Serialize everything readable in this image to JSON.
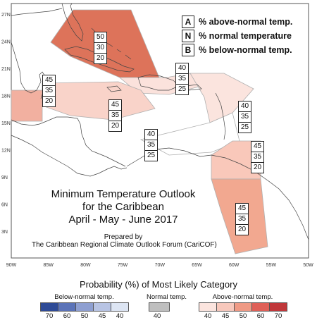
{
  "legend": {
    "items": [
      {
        "code": "A",
        "text": "% above-normal temp."
      },
      {
        "code": "N",
        "text": "% normal temperature"
      },
      {
        "code": "B",
        "text": "% below-normal temp."
      }
    ]
  },
  "title": {
    "line1": "Minimum Temperature Outlook",
    "line2": "for the Caribbean",
    "line3": "April - May - June 2017",
    "prepared1": "Prepared by",
    "prepared2": "The Caribbean Regional Climate Outlook Forum (CariCOF)"
  },
  "axes": {
    "lat_labels": [
      "27N",
      "24N",
      "21N",
      "18N",
      "15N",
      "12N",
      "9N",
      "6N",
      "3N"
    ],
    "lon_labels": [
      "90W",
      "85W",
      "80W",
      "75W",
      "70W",
      "65W",
      "60W",
      "55W",
      "50W"
    ]
  },
  "regions": [
    {
      "id": "bahamas-cuba",
      "values": [
        50,
        30,
        20
      ],
      "color": "#dd735a"
    },
    {
      "id": "belize",
      "values": [
        45,
        35,
        20
      ],
      "color": "#f2b0a0"
    },
    {
      "id": "hispaniola-puerto-rico",
      "values": [
        40,
        35,
        25
      ],
      "color": "#fbe2dc"
    },
    {
      "id": "jamaica-central-caribbean",
      "values": [
        45,
        35,
        20
      ],
      "color": "#f9d3c9"
    },
    {
      "id": "lesser-antilles",
      "values": [
        40,
        35,
        25
      ],
      "color": "#fbe4de"
    },
    {
      "id": "southern-caribbean",
      "values": [
        40,
        35,
        25
      ],
      "color": "#ffffff"
    },
    {
      "id": "trinidad",
      "values": [
        45,
        35,
        20
      ],
      "color": "#f9c8ba"
    },
    {
      "id": "guianas",
      "values": [
        45,
        35,
        20
      ],
      "color": "#f2a890"
    }
  ],
  "scale": {
    "title": "Probability (%) of Most Likely Category",
    "below": {
      "title": "Below-normal temp.",
      "colors": [
        "#2e4a96",
        "#5b73b8",
        "#8e9fd1",
        "#b8c4e4",
        "#dde5f3"
      ],
      "ticks": [
        "70",
        "60",
        "50",
        "45",
        "40"
      ]
    },
    "normal": {
      "title": "Normal temp.",
      "colors": [
        "#bfbfbf"
      ],
      "ticks": [
        "40"
      ]
    },
    "above": {
      "title": "Above-normal temp.",
      "colors": [
        "#fbe4de",
        "#f7c8bc",
        "#ef9a85",
        "#df6058",
        "#c0373a"
      ],
      "ticks": [
        "40",
        "45",
        "50",
        "60",
        "70"
      ]
    }
  }
}
